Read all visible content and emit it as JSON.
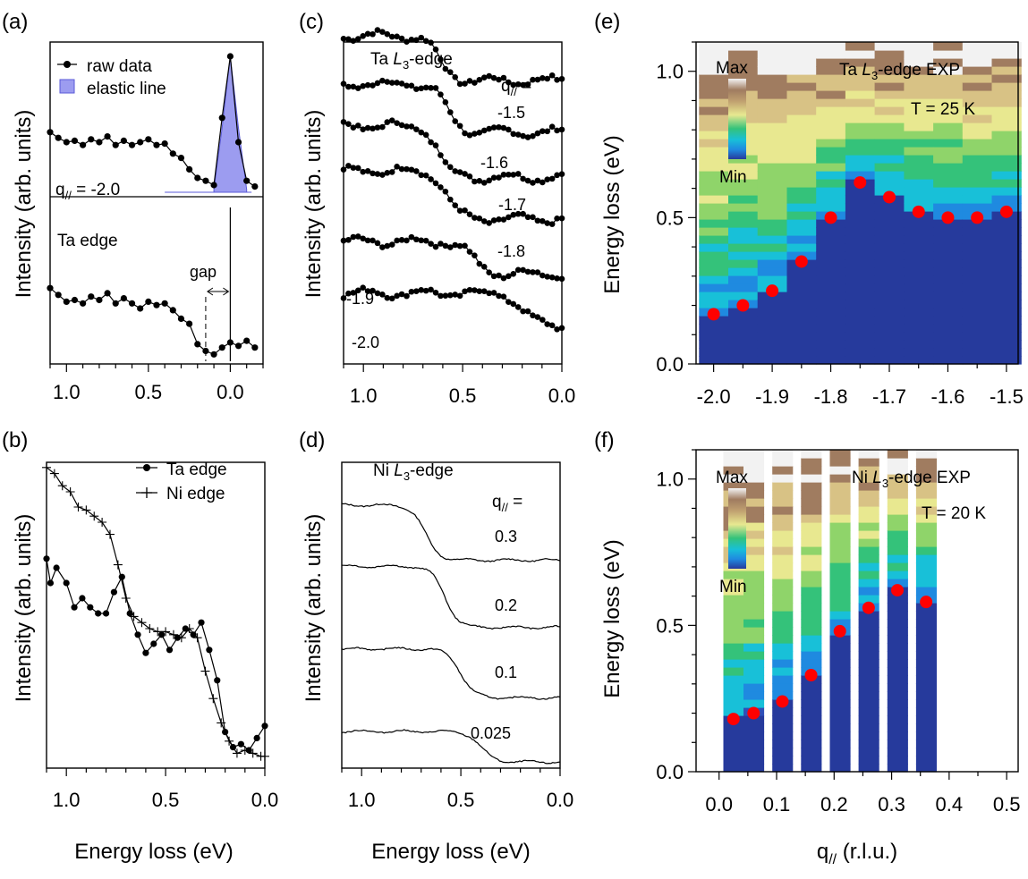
{
  "chart_data": [
    {
      "panel": "a",
      "type": "line",
      "panel_label": "(a)",
      "ylabel": "Intensity (arb. units)",
      "x_ticks": [
        "1.0",
        "0.5",
        "0.0"
      ],
      "xlim": [
        1.1,
        -0.2
      ],
      "legend": [
        {
          "name": "raw data",
          "marker": "circle"
        },
        {
          "name": "elastic line",
          "marker": "filled-square"
        }
      ],
      "annotations": {
        "q_label": "q// = -2.0",
        "edge_label": "Ta edge",
        "gap_label": "gap"
      },
      "series": [
        {
          "name": "raw data (q// = -2.0)",
          "offset": 0.95,
          "x": [
            1.1,
            1.05,
            1.0,
            0.95,
            0.9,
            0.85,
            0.8,
            0.75,
            0.7,
            0.65,
            0.6,
            0.55,
            0.5,
            0.45,
            0.4,
            0.35,
            0.3,
            0.25,
            0.2,
            0.15,
            0.1,
            0.05,
            0.0,
            -0.05,
            -0.1,
            -0.15
          ],
          "y": [
            0.42,
            0.38,
            0.35,
            0.36,
            0.33,
            0.37,
            0.35,
            0.39,
            0.33,
            0.36,
            0.33,
            0.35,
            0.37,
            0.33,
            0.34,
            0.27,
            0.24,
            0.16,
            0.1,
            0.08,
            0.05,
            0.52,
            0.95,
            0.35,
            0.08,
            0.04
          ]
        },
        {
          "name": "elastic line",
          "x": [
            0.1,
            0.05,
            0.0,
            -0.05,
            -0.1
          ],
          "y": [
            0.02,
            0.45,
            0.95,
            0.45,
            0.02
          ]
        },
        {
          "name": "Ta edge",
          "offset": 0.0,
          "x": [
            1.1,
            1.05,
            1.0,
            0.95,
            0.9,
            0.85,
            0.8,
            0.75,
            0.7,
            0.65,
            0.6,
            0.55,
            0.5,
            0.45,
            0.4,
            0.35,
            0.3,
            0.25,
            0.2,
            0.15,
            0.1,
            0.05,
            0.0,
            -0.05,
            -0.1,
            -0.15
          ],
          "y": [
            0.42,
            0.38,
            0.34,
            0.35,
            0.33,
            0.37,
            0.35,
            0.39,
            0.33,
            0.36,
            0.33,
            0.3,
            0.34,
            0.32,
            0.33,
            0.29,
            0.24,
            0.21,
            0.09,
            0.05,
            0.03,
            0.07,
            0.1,
            0.08,
            0.11,
            0.07
          ]
        }
      ]
    },
    {
      "panel": "b",
      "type": "line",
      "panel_label": "(b)",
      "xlabel": "Energy loss (eV)",
      "ylabel": "Intensity (arb. units)",
      "x_ticks": [
        "1.0",
        "0.5",
        "0.0"
      ],
      "xlim": [
        1.1,
        0.0
      ],
      "legend": [
        {
          "name": "Ta edge",
          "marker": "circle"
        },
        {
          "name": "Ni edge",
          "marker": "cross"
        }
      ],
      "series": [
        {
          "name": "Ta edge",
          "x": [
            1.1,
            1.08,
            1.05,
            1.0,
            0.96,
            0.92,
            0.88,
            0.84,
            0.8,
            0.76,
            0.72,
            0.68,
            0.64,
            0.6,
            0.56,
            0.52,
            0.48,
            0.44,
            0.4,
            0.36,
            0.32,
            0.28,
            0.24,
            0.2,
            0.16,
            0.12,
            0.08,
            0.04,
            0.0
          ],
          "y": [
            0.68,
            0.6,
            0.65,
            0.6,
            0.52,
            0.55,
            0.52,
            0.5,
            0.5,
            0.57,
            0.62,
            0.5,
            0.43,
            0.37,
            0.4,
            0.43,
            0.38,
            0.42,
            0.45,
            0.43,
            0.47,
            0.38,
            0.28,
            0.11,
            0.06,
            0.07,
            0.05,
            0.09,
            0.13
          ]
        },
        {
          "name": "Ni edge",
          "x": [
            1.1,
            1.06,
            1.02,
            0.98,
            0.94,
            0.9,
            0.86,
            0.82,
            0.78,
            0.74,
            0.7,
            0.66,
            0.62,
            0.58,
            0.54,
            0.5,
            0.46,
            0.42,
            0.38,
            0.34,
            0.3,
            0.26,
            0.22,
            0.18,
            0.14,
            0.1,
            0.06,
            0.02,
            0.0
          ],
          "y": [
            0.98,
            0.96,
            0.92,
            0.9,
            0.85,
            0.84,
            0.82,
            0.8,
            0.76,
            0.66,
            0.55,
            0.49,
            0.47,
            0.45,
            0.44,
            0.44,
            0.43,
            0.42,
            0.45,
            0.42,
            0.31,
            0.22,
            0.14,
            0.08,
            0.04,
            0.05,
            0.04,
            0.03,
            0.03
          ]
        }
      ]
    },
    {
      "panel": "c",
      "type": "line",
      "panel_label": "(c)",
      "title": "Ta L3-edge",
      "ylabel": "Intensity (arb. units)",
      "x_ticks": [
        "1.0",
        "0.5",
        "0.0"
      ],
      "xlim": [
        1.1,
        0.0
      ],
      "q_header": "q// =",
      "series": [
        {
          "name": "-1.5",
          "offset": 0.88,
          "edge": 0.62,
          "step": 0.14
        },
        {
          "name": "-1.6",
          "offset": 0.72,
          "edge": 0.58,
          "step": 0.15
        },
        {
          "name": "-1.7",
          "offset": 0.58,
          "edge": 0.62,
          "step": 0.16
        },
        {
          "name": "-1.8",
          "offset": 0.45,
          "edge": 0.58,
          "step": 0.15
        },
        {
          "name": "-1.9",
          "offset": 0.28,
          "edge": 0.45,
          "step": 0.1
        },
        {
          "name": "-2.0",
          "offset": 0.12,
          "edge": 0.2,
          "step": 0.1
        }
      ]
    },
    {
      "panel": "d",
      "type": "line",
      "panel_label": "(d)",
      "title": "Ni L3-edge",
      "xlabel": "Energy loss (eV)",
      "ylabel": "Intensity (arb. units)",
      "x_ticks": [
        "1.0",
        "0.5",
        "0.0"
      ],
      "xlim": [
        1.1,
        0.0
      ],
      "q_header": "q// =",
      "series": [
        {
          "name": "0.3",
          "offset": 0.68,
          "edge": 0.68,
          "step": 0.18
        },
        {
          "name": "0.2",
          "offset": 0.46,
          "edge": 0.58,
          "step": 0.2
        },
        {
          "name": "0.1",
          "offset": 0.23,
          "edge": 0.5,
          "step": 0.16
        },
        {
          "name": "0.025",
          "offset": 0.02,
          "edge": 0.4,
          "step": 0.1
        }
      ]
    },
    {
      "panel": "e",
      "type": "heatmap",
      "panel_label": "(e)",
      "title": "Ta L3-edge EXP",
      "temperature": "T = 25 K",
      "ylabel": "Energy loss (eV)",
      "x_ticks": [
        "-2.0",
        "-1.9",
        "-1.8",
        "-1.7",
        "-1.6",
        "-1.5"
      ],
      "y_ticks": [
        "0.0",
        "0.5",
        "1.0"
      ],
      "xlim": [
        -2.03,
        -1.48
      ],
      "ylim": [
        0.0,
        1.1
      ],
      "colorbar": {
        "max": "Max",
        "min": "Min"
      },
      "columns_q": [
        -2.0,
        -1.95,
        -1.9,
        -1.85,
        -1.8,
        -1.75,
        -1.7,
        -1.65,
        -1.6,
        -1.55,
        -1.5
      ],
      "gap_energy": [
        0.17,
        0.2,
        0.25,
        0.35,
        0.5,
        0.62,
        0.57,
        0.52,
        0.5,
        0.5,
        0.52
      ],
      "peaks": {
        "q": [
          -2.0,
          -1.95,
          -1.9,
          -1.85,
          -1.8,
          -1.75,
          -1.7,
          -1.65,
          -1.6,
          -1.55,
          -1.5
        ],
        "energy": [
          0.17,
          0.2,
          0.25,
          0.35,
          0.5,
          0.62,
          0.57,
          0.52,
          0.5,
          0.5,
          0.52
        ]
      }
    },
    {
      "panel": "f",
      "type": "heatmap",
      "panel_label": "(f)",
      "title": "Ni L3-edge EXP",
      "temperature": "T = 20 K",
      "xlabel": "q// (r.l.u.)",
      "ylabel": "Energy loss (eV)",
      "x_ticks": [
        "0.0",
        "0.1",
        "0.2",
        "0.3",
        "0.4",
        "0.5"
      ],
      "y_ticks": [
        "0.0",
        "0.5",
        "1.0"
      ],
      "xlim": [
        -0.04,
        0.52
      ],
      "ylim": [
        0.0,
        1.1
      ],
      "colorbar": {
        "max": "Max",
        "min": "Min"
      },
      "columns_q": [
        0.025,
        0.06,
        0.11,
        0.16,
        0.21,
        0.26,
        0.31,
        0.36
      ],
      "gap_energy": [
        0.18,
        0.2,
        0.24,
        0.33,
        0.48,
        0.56,
        0.62,
        0.58
      ],
      "peaks": {
        "q": [
          0.025,
          0.06,
          0.11,
          0.16,
          0.21,
          0.26,
          0.31,
          0.36
        ],
        "energy": [
          0.18,
          0.2,
          0.24,
          0.33,
          0.48,
          0.56,
          0.62,
          0.58
        ]
      }
    }
  ],
  "colors": {
    "line": "#000000",
    "elastic_fill": "#9c9cf0",
    "elastic_edge": "#5a5ad8",
    "peak_marker": "#ff0000",
    "colormap": [
      "#263a9c",
      "#2f4fb8",
      "#1f8ae0",
      "#18c0d8",
      "#34c27a",
      "#8fd46a",
      "#e8e890",
      "#d8c285",
      "#a07c60",
      "#f2f2f2"
    ]
  }
}
